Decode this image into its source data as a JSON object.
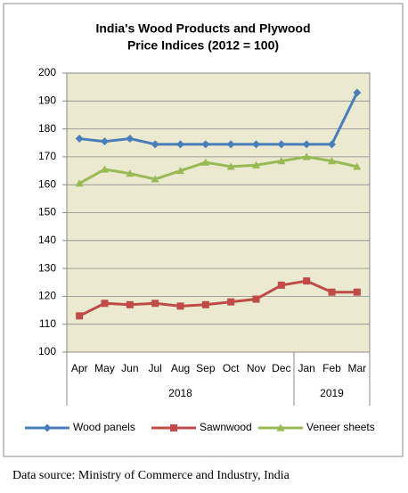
{
  "chart_data": {
    "type": "line",
    "title": [
      "India's Wood Products and Plywood",
      "Price Indices (2012 = 100)"
    ],
    "category_groups": [
      {
        "label": "2018",
        "categories": [
          "Apr",
          "May",
          "Jun",
          "Jul",
          "Aug",
          "Sep",
          "Oct",
          "Nov",
          "Dec"
        ]
      },
      {
        "label": "2019",
        "categories": [
          "Jan",
          "Feb",
          "Mar"
        ]
      }
    ],
    "series": [
      {
        "name": "Wood panels",
        "color": "#4a7ebb",
        "marker": "diamond",
        "values": [
          176.5,
          175.5,
          176.5,
          174.5,
          174.5,
          174.5,
          174.5,
          174.5,
          174.5,
          174.5,
          174.5,
          193
        ]
      },
      {
        "name": "Sawnwood",
        "color": "#be4b48",
        "marker": "square",
        "values": [
          113,
          117.5,
          117,
          117.5,
          116.5,
          117,
          118,
          119,
          124,
          125.5,
          121.5,
          121.5
        ]
      },
      {
        "name": "Veneer sheets",
        "color": "#98b954",
        "marker": "triangle",
        "values": [
          160.5,
          165.5,
          164,
          162,
          165,
          168,
          166.5,
          167,
          168.5,
          170,
          168.5,
          166.5
        ]
      }
    ],
    "ylim": [
      100,
      200
    ],
    "yticks": [
      100,
      110,
      120,
      130,
      140,
      150,
      160,
      170,
      180,
      190,
      200
    ],
    "grid": true,
    "legend": "bottom",
    "plot_background": "#ebe9cf",
    "source": "Data source: Ministry of Commerce and Industry, India"
  }
}
